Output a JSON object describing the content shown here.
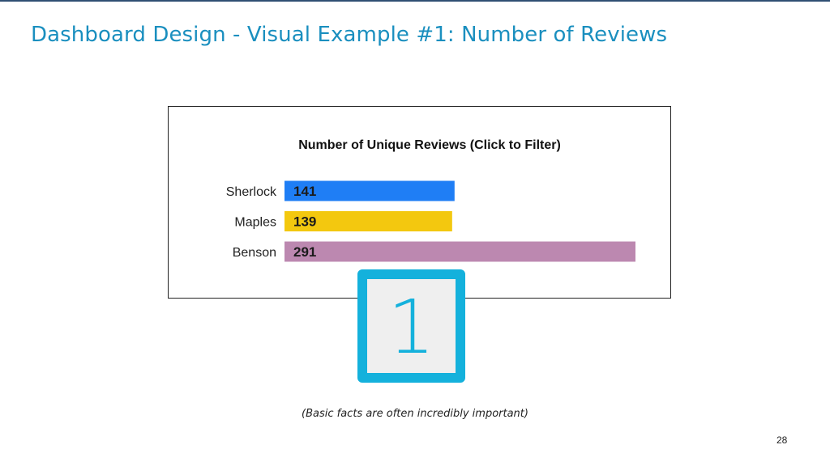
{
  "slide": {
    "title": "Dashboard Design - Visual Example #1: Number of Reviews",
    "caption": "(Basic facts are often incredibly important)",
    "page_number": "28",
    "badge_number": "1"
  },
  "colors": {
    "title": "#1a8fbf",
    "badge": "#14b1dc",
    "badge_fill": "#efefef"
  },
  "chart_data": {
    "type": "bar",
    "orientation": "horizontal",
    "title": "Number of Unique Reviews (Click to Filter)",
    "categories": [
      "Sherlock",
      "Maples",
      "Benson"
    ],
    "values": [
      141,
      139,
      291
    ],
    "value_labels": [
      "141",
      "139",
      "291"
    ],
    "bar_colors": [
      "#1f7ef5",
      "#f3c80f",
      "#bc88b0"
    ],
    "xlim": [
      0,
      291
    ],
    "grid": false,
    "legend": "none"
  }
}
